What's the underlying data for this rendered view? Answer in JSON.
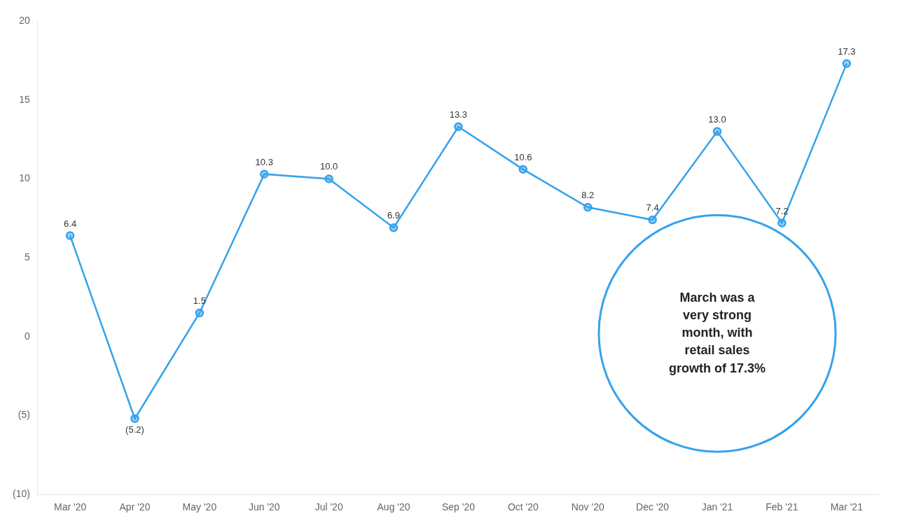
{
  "chart_data": {
    "type": "line",
    "categories": [
      "Mar '20",
      "Apr '20",
      "May '20",
      "Jun '20",
      "Jul '20",
      "Aug '20",
      "Sep '20",
      "Oct '20",
      "Nov '20",
      "Dec '20",
      "Jan '21",
      "Feb '21",
      "Mar '21"
    ],
    "values": [
      6.4,
      -5.2,
      1.5,
      10.3,
      10.0,
      6.9,
      13.3,
      10.6,
      8.2,
      7.4,
      13.0,
      7.2,
      17.3
    ],
    "value_labels": [
      "6.4",
      "(5.2)",
      "1.5",
      "10.3",
      "10.0",
      "6.9",
      "13.3",
      "10.6",
      "8.2",
      "7.4",
      "13.0",
      "7.2",
      "17.3"
    ],
    "data_labels": true,
    "ylim": [
      -10,
      20
    ],
    "yticks": [
      {
        "value": -10,
        "label": "(10)"
      },
      {
        "value": -5,
        "label": "(5)"
      },
      0,
      5,
      10,
      15,
      20
    ],
    "grid": false,
    "marker": "circle",
    "annotation": "March was a\nvery strong\nmonth, with\nretail sales\ngrowth of 17.3%"
  }
}
